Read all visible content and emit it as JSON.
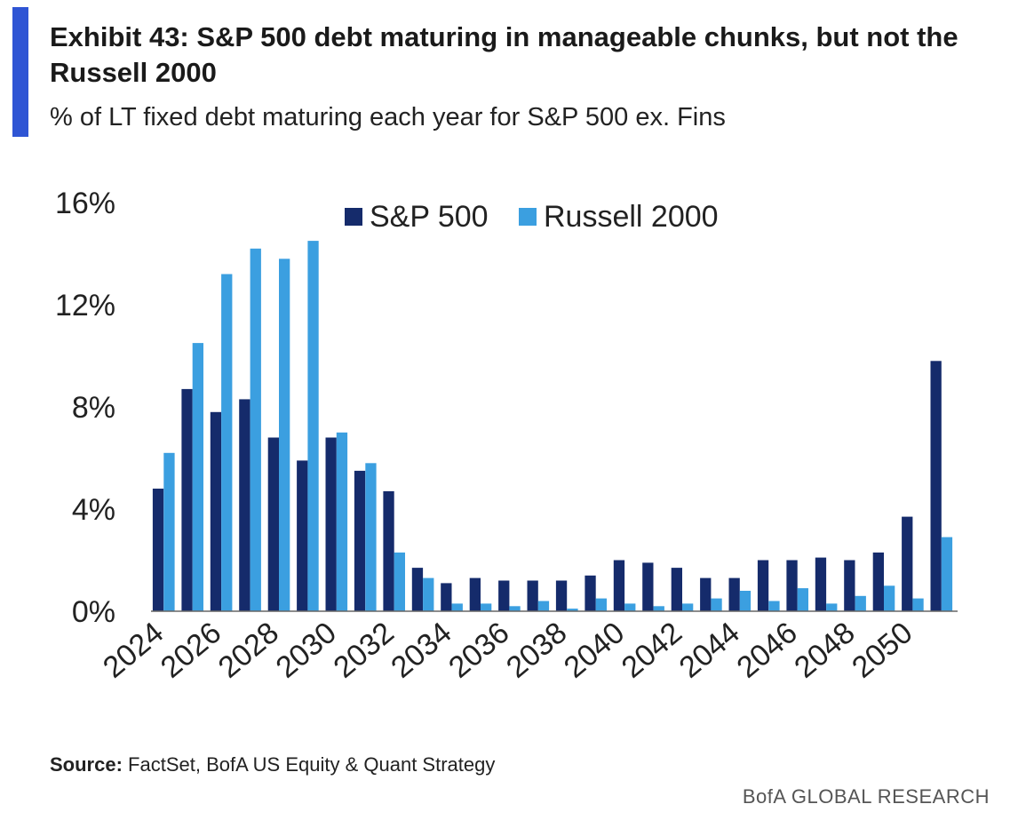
{
  "header": {
    "title": "Exhibit 43: S&P 500 debt maturing in manageable chunks, but not the Russell 2000",
    "subtitle": "% of LT fixed debt maturing each year for S&P 500 ex. Fins"
  },
  "footer": {
    "source_label": "Source:",
    "source_text": " FactSet, BofA US Equity & Quant Strategy",
    "brand": "BofA GLOBAL RESEARCH"
  },
  "colors": {
    "accent": "#2f55d4",
    "sp500": "#152b6b",
    "russell2000": "#3b9fe0"
  },
  "chart_data": {
    "type": "bar",
    "x": [
      2024,
      2025,
      2026,
      2027,
      2028,
      2029,
      2030,
      2031,
      2032,
      2033,
      2034,
      2035,
      2036,
      2037,
      2038,
      2039,
      2040,
      2041,
      2042,
      2043,
      2044,
      2045,
      2046,
      2047,
      2048,
      2049,
      2050,
      2051
    ],
    "x_tick_labels": [
      "2024",
      "2026",
      "2028",
      "2030",
      "2032",
      "2034",
      "2036",
      "2038",
      "2040",
      "2042",
      "2044",
      "2046",
      "2048",
      "2050"
    ],
    "y_tick_labels": [
      "0%",
      "4%",
      "8%",
      "12%",
      "16%"
    ],
    "ylim": [
      0,
      16
    ],
    "legend_position": "top-center",
    "grid": false,
    "series": [
      {
        "name": "S&P 500",
        "values": [
          4.8,
          8.7,
          7.8,
          8.3,
          6.8,
          5.9,
          6.8,
          5.5,
          4.7,
          1.7,
          1.1,
          1.3,
          1.2,
          1.2,
          1.2,
          1.4,
          2.0,
          1.9,
          1.7,
          1.3,
          1.3,
          2.0,
          2.0,
          2.1,
          2.0,
          2.3,
          3.7,
          9.8
        ]
      },
      {
        "name": "Russell 2000",
        "values": [
          6.2,
          10.5,
          13.2,
          14.2,
          13.8,
          14.5,
          7.0,
          5.8,
          2.3,
          1.3,
          0.3,
          0.3,
          0.2,
          0.4,
          0.1,
          0.5,
          0.3,
          0.2,
          0.3,
          0.5,
          0.8,
          0.4,
          0.9,
          0.3,
          0.6,
          1.0,
          0.5,
          2.9
        ]
      }
    ]
  }
}
